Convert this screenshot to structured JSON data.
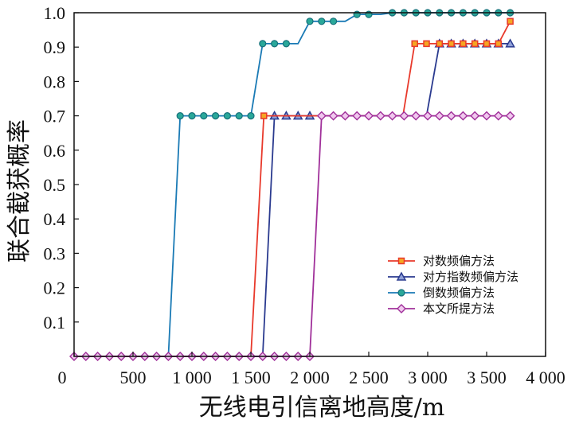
{
  "chart_data": {
    "type": "line",
    "xlabel": "无线电引信离地高度/m",
    "ylabel": "联合截获概率",
    "xlim": [
      0,
      4000
    ],
    "ylim": [
      0,
      1.0
    ],
    "x_ticks": [
      0,
      500,
      1000,
      1500,
      2000,
      2500,
      3000,
      3500,
      4000
    ],
    "x_tick_labels": [
      "0",
      "500",
      "1 000",
      "1 500",
      "2 000",
      "2 500",
      "3 000",
      "3 500",
      "4 000"
    ],
    "y_ticks": [
      0.1,
      0.2,
      0.3,
      0.4,
      0.5,
      0.6,
      0.7,
      0.8,
      0.9,
      1.0
    ],
    "y_tick_labels": [
      "0.1",
      "0.2",
      "0.3",
      "0.4",
      "0.5",
      "0.6",
      "0.7",
      "0.8",
      "0.9",
      "1.0"
    ],
    "grid": false,
    "legend_position": "lower-right",
    "series": [
      {
        "name": "对数频偏方法",
        "color": "#e8392b",
        "marker": "square",
        "x": [
          1500,
          1600,
          2800,
          2900,
          3700
        ],
        "y": [
          0.0,
          0.7,
          0.7,
          0.91,
          0.91
        ],
        "marker_x": [
          1610,
          2890,
          2990,
          3100,
          3200,
          3300,
          3400,
          3500,
          3600,
          3700
        ],
        "marker_y": [
          0.7,
          0.91,
          0.91,
          0.91,
          0.91,
          0.91,
          0.91,
          0.91,
          0.91,
          0.975
        ],
        "line_x": [
          0,
          1500,
          1610,
          2790,
          2890,
          3600,
          3700
        ],
        "line_y": [
          0.0,
          0.0,
          0.7,
          0.7,
          0.91,
          0.91,
          0.975
        ]
      },
      {
        "name": "对方指数频偏方法",
        "color": "#2a3a8f",
        "marker": "triangle",
        "line_x": [
          0,
          1600,
          1700,
          2990,
          3100,
          3700
        ],
        "line_y": [
          0.0,
          0.0,
          0.7,
          0.7,
          0.91,
          0.91
        ],
        "marker_x": [
          1700,
          1800,
          1900,
          2000,
          3100,
          3200,
          3300,
          3400,
          3500,
          3600,
          3700
        ],
        "marker_y": [
          0.7,
          0.7,
          0.7,
          0.7,
          0.91,
          0.91,
          0.91,
          0.91,
          0.91,
          0.91,
          0.91
        ]
      },
      {
        "name": "倒数频偏方法",
        "color": "#1a7ab5",
        "marker_color": "#2aa89a",
        "marker": "circle",
        "line_x": [
          0,
          800,
          900,
          1500,
          1600,
          1900,
          2000,
          2300,
          2400,
          2600,
          2700,
          3700
        ],
        "line_y": [
          0.0,
          0.0,
          0.7,
          0.7,
          0.91,
          0.91,
          0.975,
          0.975,
          0.995,
          0.995,
          1.0,
          1.0
        ],
        "marker_x": [
          900,
          1000,
          1100,
          1200,
          1300,
          1400,
          1500,
          1600,
          1700,
          1800,
          2000,
          2100,
          2200,
          2400,
          2500,
          2700,
          2800,
          2900,
          3000,
          3100,
          3200,
          3300,
          3400,
          3500,
          3600,
          3700
        ],
        "marker_y": [
          0.7,
          0.7,
          0.7,
          0.7,
          0.7,
          0.7,
          0.7,
          0.91,
          0.91,
          0.91,
          0.975,
          0.975,
          0.975,
          0.995,
          0.995,
          1.0,
          1.0,
          1.0,
          1.0,
          1.0,
          1.0,
          1.0,
          1.0,
          1.0,
          1.0,
          1.0
        ]
      },
      {
        "name": "本文所提方法",
        "color": "#a0309a",
        "marker": "diamond",
        "line_x": [
          0,
          2000,
          2100,
          3700
        ],
        "line_y": [
          0.0,
          0.0,
          0.7,
          0.7
        ],
        "marker_x": [
          0,
          100,
          200,
          300,
          400,
          500,
          600,
          700,
          800,
          900,
          1000,
          1100,
          1200,
          1300,
          1400,
          1500,
          1600,
          1700,
          1800,
          1900,
          2000,
          2100,
          2200,
          2300,
          2400,
          2500,
          2600,
          2700,
          2800,
          2900,
          3000,
          3100,
          3200,
          3300,
          3400,
          3500,
          3600,
          3700
        ],
        "marker_y": [
          0.0,
          0.0,
          0.0,
          0.0,
          0.0,
          0.0,
          0.0,
          0.0,
          0.0,
          0.0,
          0.0,
          0.0,
          0.0,
          0.0,
          0.0,
          0.0,
          0.0,
          0.0,
          0.0,
          0.0,
          0.0,
          0.7,
          0.7,
          0.7,
          0.7,
          0.7,
          0.7,
          0.7,
          0.7,
          0.7,
          0.7,
          0.7,
          0.7,
          0.7,
          0.7,
          0.7,
          0.7,
          0.7
        ]
      }
    ]
  }
}
